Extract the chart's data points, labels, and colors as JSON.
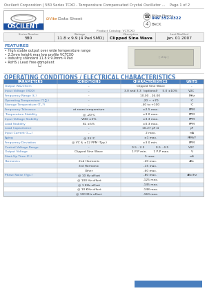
{
  "title_line": "Oscilent Corporation | 580 Series TCXO - Temperature Compensated Crystal Oscillator ...    Page 1 of 2",
  "header_cols": [
    "Series Number",
    "Package",
    "Description",
    "Last Modified"
  ],
  "header_vals": [
    "580",
    "11.8 x 9.9 (4 Pad SMD)",
    "Clipped Sine Wave",
    "Jan. 01 2007"
  ],
  "features_title": "FEATURES",
  "features": [
    "High stable output over wide temperature range",
    "2.2mm height max low profile VCTCXO",
    "Industry standard 11.8 x 9.9mm 4 Pad",
    "RoHS / Lead Free compliant"
  ],
  "table_title": "OPERATING CONDITIONS / ELECTRICAL CHARACTERISTICS",
  "table_headers": [
    "PARAMETERS",
    "CONDITIONS",
    "CHARACTERISTICS",
    "UNITS"
  ],
  "table_rows": [
    [
      "Output Waveform",
      "-",
      "Clipped Sine Wave",
      "-"
    ],
    [
      "Input Voltage (VDD)",
      "-",
      "3.0 and 3.3  (optional)     5.0 ±10%",
      "VDC"
    ],
    [
      "Frequency Range (f₀)",
      "-",
      "10.00 - 26.00",
      "MHz"
    ],
    [
      "Operating Temperature (Tₜ₞ₚ)",
      "-",
      "-20 ~ +70",
      "°C"
    ],
    [
      "Storage Temperature (Tₛₜᵍ)",
      "-",
      "-40 to +100",
      "°C"
    ],
    [
      "Frequency Tolerance",
      "at room temperature",
      "±2.5 max.",
      "PPM"
    ],
    [
      "Temperature Stability",
      "@ -20°C",
      "±3.0 max.",
      "PPM"
    ],
    [
      "Input Voltage Stability",
      "VDD ±5%",
      "±3.3 max.",
      "PPM"
    ],
    [
      "Load Stability",
      "8L ±5%",
      "±0.3 max.",
      "PPM"
    ],
    [
      "Load Capacitance",
      "-",
      "10-27 pF Ω",
      "pF"
    ],
    [
      "Input Current (Iₛᵤₚ)",
      "-",
      "2 max.",
      "mA"
    ],
    [
      "Aging",
      "@ 25°C",
      "±1 max.",
      "PPM/Y"
    ],
    [
      "Frequency Deviation",
      "@ VC & ±12 PPM (Typ.)",
      "±3.0 min.",
      "PPM"
    ],
    [
      "Control Voltage Range",
      "-",
      "0.5 - 2.5            0.5 - 4.5",
      "VDC"
    ],
    [
      "Output Voltage",
      "Clipped Sine Wave",
      "1 P-P min.       1 P-P max.",
      "V"
    ],
    [
      "Start-Up Time (Fₛ)",
      "-",
      "5 max.",
      "mS"
    ],
    [
      "Harmonics",
      "2nd Harmonic",
      "-20 max.",
      "dBc"
    ],
    [
      "",
      "3rd Harmonic",
      "-15 max.",
      ""
    ],
    [
      "",
      "Other",
      "-60 max.",
      ""
    ],
    [
      "Phase Noise (Typ.)",
      "@ 10 Hz offset",
      "-80 max.",
      "dBc/Hz"
    ],
    [
      "",
      "@ 100 Hz offset",
      "-125 max.",
      ""
    ],
    [
      "",
      "@ 1 KHz offset",
      "-145 max.",
      ""
    ],
    [
      "",
      "@ 10 KHz offset",
      "-148 max.",
      ""
    ],
    [
      "",
      "@ 100 KHz offset",
      "-160 max.",
      ""
    ]
  ],
  "bg_color": "#ffffff",
  "header_row_color": "#4a7fbe",
  "alt_row_color": "#dce6f1",
  "param_color": "#4a7fbe",
  "table_title_color": "#4a7fbe",
  "features_color": "#4a7fbe",
  "header_text_color": "#ffffff",
  "phone_text": "Billing Phones",
  "phone_number": "949 352-0322",
  "back_text": "BACK",
  "product_catalog": "Product Catalog: VCTCXO",
  "footer_blue_rect": true
}
